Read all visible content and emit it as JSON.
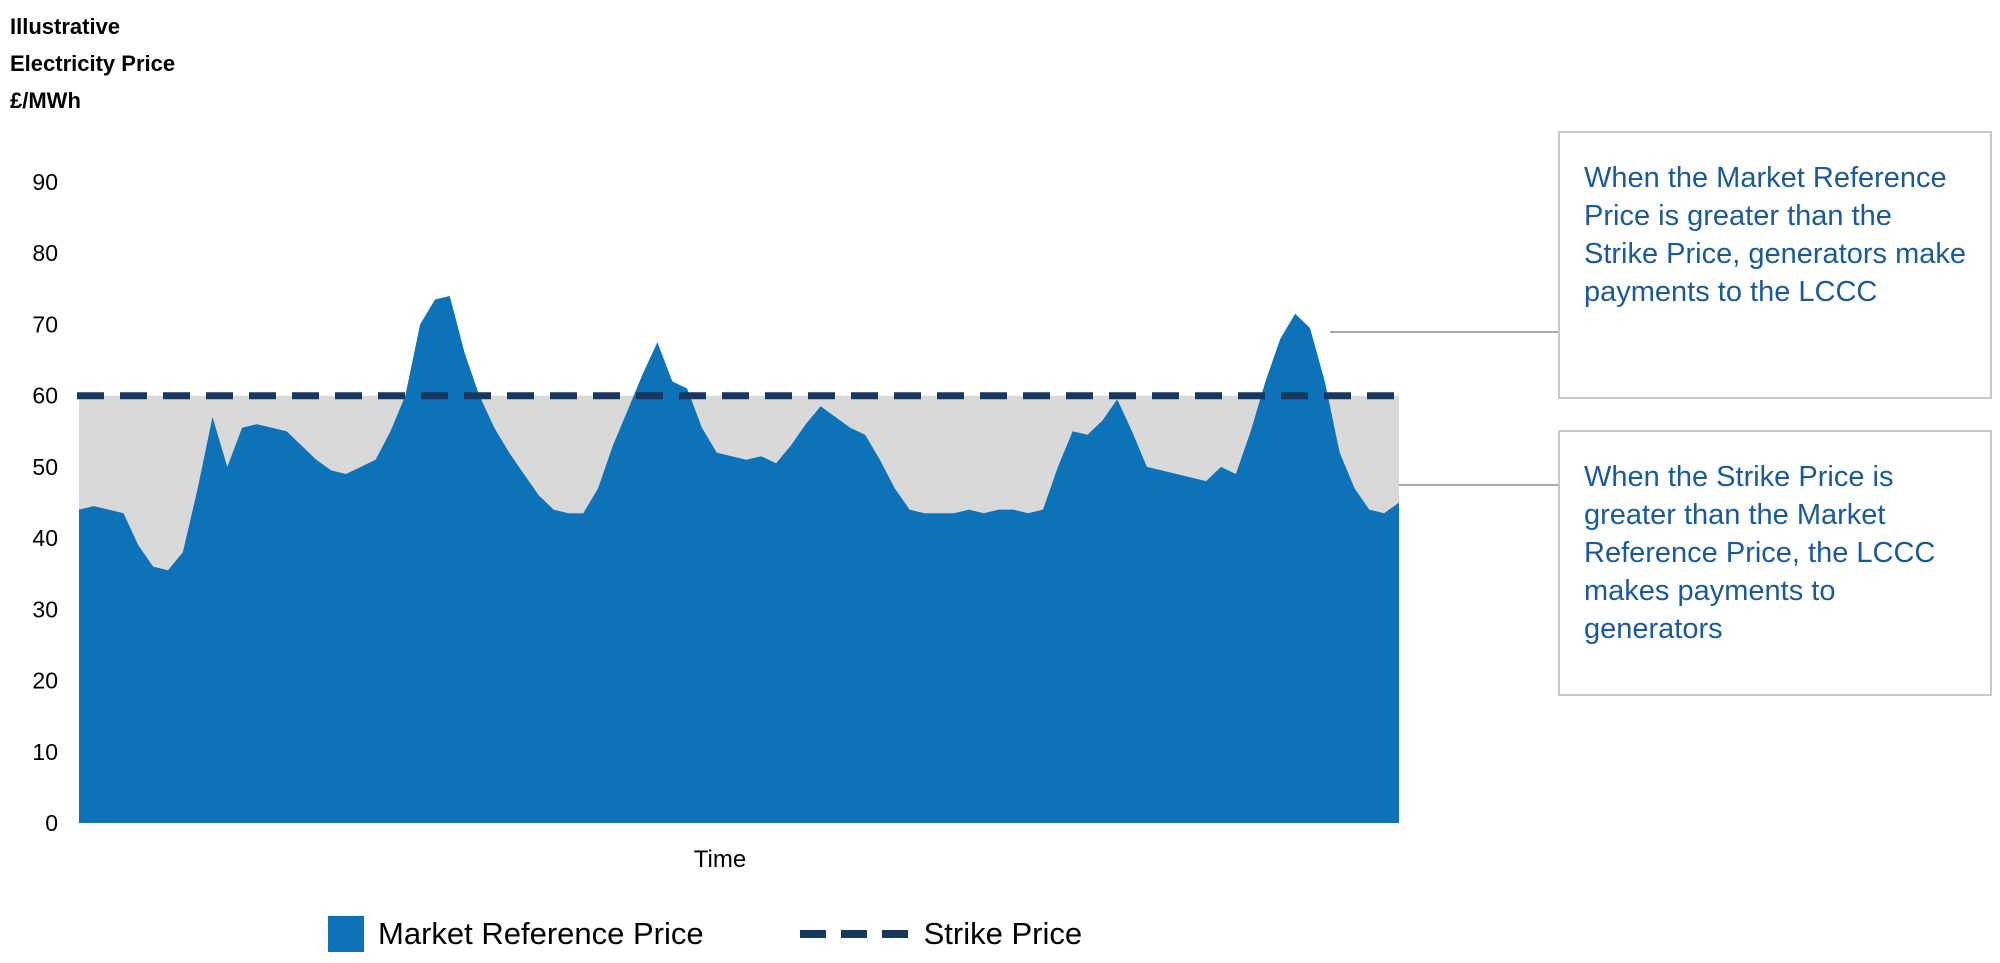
{
  "axis_title": "Illustrative\nElectricity Price\n£/MWh",
  "chart_data": {
    "type": "area",
    "title": "",
    "xlabel": "Time",
    "ylabel": "Illustrative Electricity Price £/MWh",
    "ylim": [
      0,
      90
    ],
    "yticks": [
      0,
      10,
      20,
      30,
      40,
      50,
      60,
      70,
      80,
      90
    ],
    "grid": false,
    "legend_position": "bottom",
    "series": [
      {
        "name": "Market Reference Price",
        "type": "area",
        "color": "#0e72b8",
        "values": [
          44,
          44.5,
          44,
          43.5,
          39,
          36,
          35.5,
          38,
          47,
          57,
          50,
          55.5,
          56,
          55.5,
          55,
          53,
          51,
          49.5,
          49,
          50,
          51,
          55,
          60,
          70,
          73.5,
          74,
          66,
          60,
          55.5,
          52,
          49,
          46,
          44,
          43.5,
          43.5,
          47,
          53,
          58,
          63,
          67.5,
          62,
          61,
          55.5,
          52,
          51.5,
          51,
          51.5,
          50.5,
          53,
          56,
          58.5,
          57,
          55.5,
          54.5,
          51,
          47,
          44,
          43.5,
          43.5,
          43.5,
          44,
          43.5,
          44,
          44,
          43.5,
          44,
          50,
          55,
          54.5,
          56.5,
          59.5,
          55,
          50,
          49.5,
          49,
          48.5,
          48,
          50,
          49,
          55,
          62,
          68,
          71.5,
          69.5,
          62,
          52,
          47,
          44,
          43.5,
          45
        ]
      },
      {
        "name": "Strike Price",
        "type": "dashed-line",
        "color": "#17375e",
        "value": 60
      }
    ],
    "shading": {
      "description": "Gap between Strike Price and Market Reference Price (difference payment region)",
      "color": "#d9d9d9"
    }
  },
  "legend": {
    "items": [
      {
        "label": "Market Reference Price",
        "swatch": "square",
        "color": "#0e72b8"
      },
      {
        "label": "Strike Price",
        "swatch": "dashed-line",
        "color": "#17375e"
      }
    ]
  },
  "annotations": [
    {
      "text": "When the Market Reference Price is greater than the Strike Price, generators make payments to the LCCC"
    },
    {
      "text": "When the Strike Price is greater than the Market Reference Price, the LCCC makes payments to generators"
    }
  ],
  "colors": {
    "area_blue": "#0e72b8",
    "shading_gray": "#d9d9d9",
    "strike_navy": "#17375e",
    "annotation_text_blue": "#1d5a94",
    "box_border_gray": "#c9c9c9",
    "connector_gray": "#a9a9a9",
    "tick_text": "#000000"
  }
}
